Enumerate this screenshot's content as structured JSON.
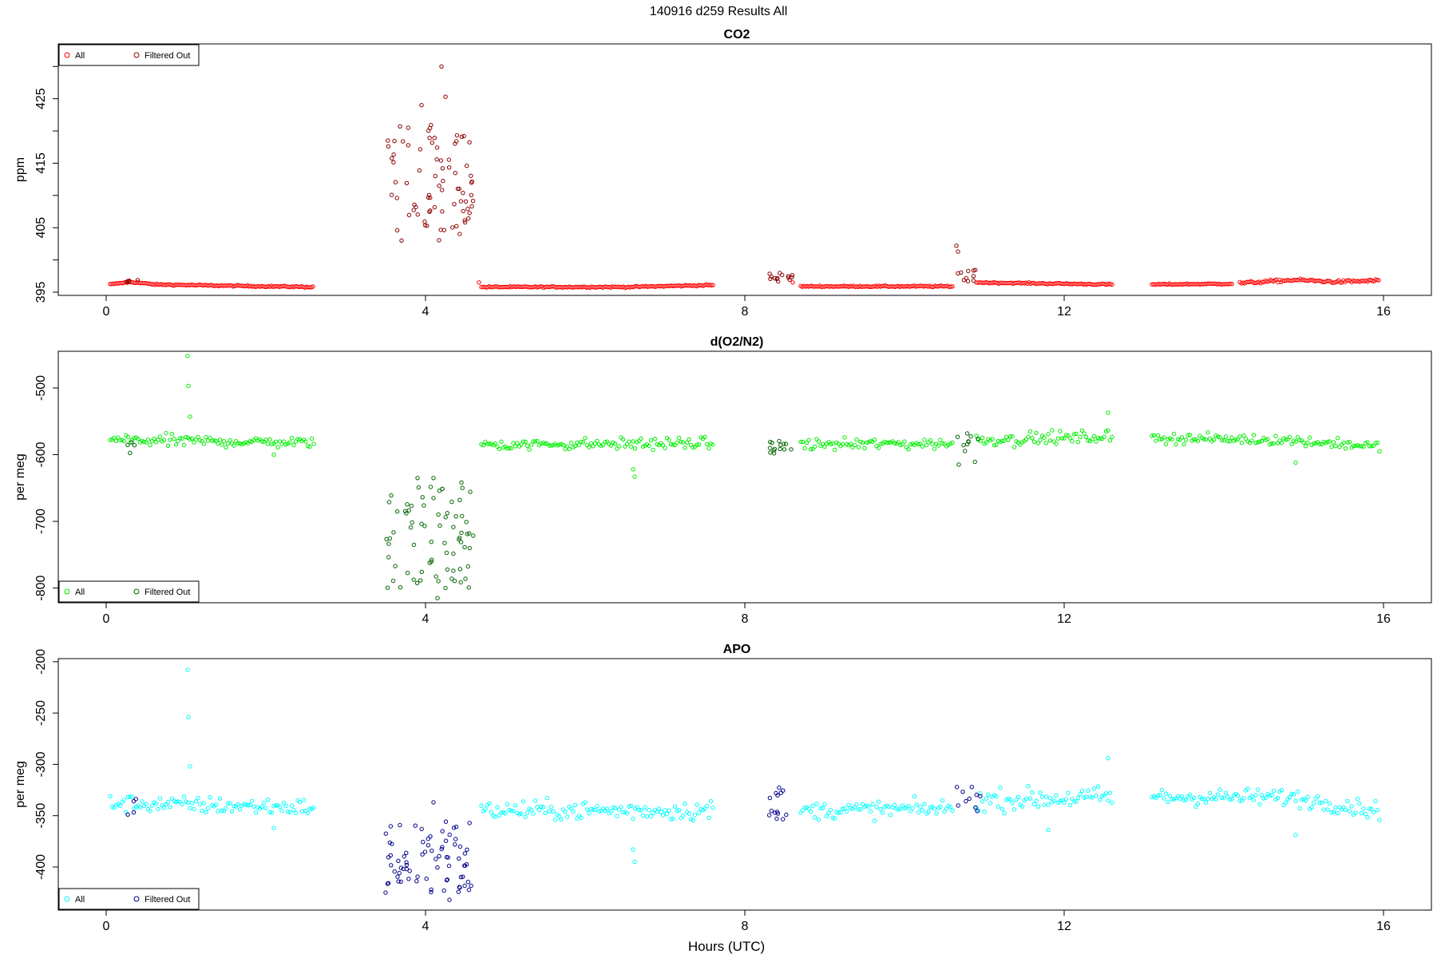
{
  "page": {
    "title": "140916   d259   Results All"
  },
  "xlabel": "Hours (UTC)",
  "colors": {
    "co2_all": "#ff0000",
    "co2_filtered": "#8b0000",
    "o2_all": "#00ee00",
    "o2_filtered": "#006400",
    "apo_all": "#00ffff",
    "apo_filtered": "#00008b"
  },
  "chart_data": [
    {
      "type": "scatter",
      "title": "CO2",
      "ylabel": "ppm",
      "xlim": [
        -0.6,
        16.6
      ],
      "ylim": [
        394.5,
        433.5
      ],
      "xticks": [
        0,
        4,
        8,
        12,
        16
      ],
      "yticks": [
        395,
        400,
        405,
        410,
        415,
        420,
        425,
        430
      ],
      "ytick_labels": [
        "395",
        "",
        "405",
        "",
        "415",
        "",
        "425",
        ""
      ],
      "grid": false,
      "legend": {
        "placement": "top-left",
        "entries": [
          "All",
          "Filtered Out"
        ]
      },
      "series": [
        {
          "name": "All",
          "segments": [
            {
              "x_start": 0.05,
              "x_end": 2.6,
              "step": 0.02,
              "y_knots": [
                [
                  0.05,
                  396.2
                ],
                [
                  0.3,
                  396.6
                ],
                [
                  0.6,
                  396.2
                ],
                [
                  1.5,
                  396.0
                ],
                [
                  2.6,
                  395.8
                ]
              ],
              "noise": 0.1
            },
            {
              "x_start": 4.7,
              "x_end": 7.6,
              "step": 0.02,
              "y_knots": [
                [
                  4.7,
                  395.8
                ],
                [
                  6.5,
                  395.8
                ],
                [
                  7.6,
                  396.1
                ]
              ],
              "noise": 0.1
            },
            {
              "x_start": 8.7,
              "x_end": 10.6,
              "step": 0.02,
              "y_knots": [
                [
                  8.7,
                  395.9
                ],
                [
                  10.6,
                  395.9
                ]
              ],
              "noise": 0.1
            },
            {
              "x_start": 10.9,
              "x_end": 12.6,
              "step": 0.02,
              "y_knots": [
                [
                  10.9,
                  396.5
                ],
                [
                  12.6,
                  396.2
                ]
              ],
              "noise": 0.1
            },
            {
              "x_start": 13.1,
              "x_end": 14.1,
              "step": 0.02,
              "y_knots": [
                [
                  13.1,
                  396.2
                ],
                [
                  14.1,
                  396.3
                ]
              ],
              "noise": 0.1
            },
            {
              "x_start": 14.2,
              "x_end": 15.95,
              "step": 0.02,
              "y_knots": [
                [
                  14.2,
                  396.4
                ],
                [
                  14.9,
                  396.9
                ],
                [
                  15.4,
                  396.6
                ],
                [
                  15.95,
                  396.8
                ]
              ],
              "noise": 0.2
            }
          ],
          "points": [
            [
              4.67,
              396.5
            ],
            [
              8.6,
              396.5
            ]
          ]
        },
        {
          "name": "Filtered Out",
          "clusters": [
            {
              "x_start": 3.5,
              "x_end": 4.6,
              "y_min": 403,
              "y_max": 421,
              "count": 80
            },
            {
              "x_start": 8.3,
              "x_end": 8.6,
              "y_min": 396.5,
              "y_max": 398.0,
              "count": 14
            },
            {
              "x_start": 10.65,
              "x_end": 10.9,
              "y_min": 396.5,
              "y_max": 398.5,
              "count": 10
            },
            {
              "x_start": 0.25,
              "x_end": 0.4,
              "y_min": 396.4,
              "y_max": 396.9,
              "count": 5
            }
          ],
          "points": [
            [
              3.7,
              403.0
            ],
            [
              3.95,
              424.0
            ],
            [
              4.2,
              430.0
            ],
            [
              4.25,
              425.3
            ],
            [
              10.65,
              402.2
            ],
            [
              10.67,
              401.3
            ]
          ]
        }
      ]
    },
    {
      "type": "scatter",
      "title": "d(O2/N2)",
      "ylabel": "per meg",
      "xlim": [
        -0.6,
        16.6
      ],
      "ylim": [
        -822,
        -445
      ],
      "xticks": [
        0,
        4,
        8,
        12,
        16
      ],
      "yticks": [
        -800,
        -700,
        -600,
        -500
      ],
      "ytick_labels": [
        "-800",
        "-700",
        "-600",
        "-500"
      ],
      "grid": false,
      "legend": {
        "placement": "bottom-left",
        "entries": [
          "All",
          "Filtered Out"
        ]
      },
      "series": [
        {
          "name": "All",
          "segments": [
            {
              "x_start": 0.05,
              "x_end": 2.6,
              "step": 0.025,
              "y_knots": [
                [
                  0.05,
                  -578
                ],
                [
                  2.6,
                  -582
                ]
              ],
              "noise": 8
            },
            {
              "x_start": 4.7,
              "x_end": 7.6,
              "step": 0.025,
              "y_knots": [
                [
                  4.7,
                  -585
                ],
                [
                  7.6,
                  -583
                ]
              ],
              "noise": 8
            },
            {
              "x_start": 8.7,
              "x_end": 10.6,
              "step": 0.025,
              "y_knots": [
                [
                  8.7,
                  -585
                ],
                [
                  10.6,
                  -583
                ]
              ],
              "noise": 8
            },
            {
              "x_start": 10.9,
              "x_end": 12.6,
              "step": 0.025,
              "y_knots": [
                [
                  10.9,
                  -578
                ],
                [
                  12.6,
                  -573
                ]
              ],
              "noise": 9
            },
            {
              "x_start": 13.1,
              "x_end": 15.95,
              "step": 0.025,
              "y_knots": [
                [
                  13.1,
                  -575
                ],
                [
                  14.8,
                  -578
                ],
                [
                  15.95,
                  -588
                ]
              ],
              "noise": 7
            }
          ],
          "points": [
            [
              1.02,
              -452
            ],
            [
              1.03,
              -497
            ],
            [
              1.05,
              -543
            ],
            [
              6.6,
              -622
            ],
            [
              6.62,
              -633
            ],
            [
              12.55,
              -537
            ],
            [
              14.9,
              -612
            ],
            [
              2.1,
              -600
            ]
          ]
        },
        {
          "name": "Filtered Out",
          "clusters": [
            {
              "x_start": 3.5,
              "x_end": 4.6,
              "y_min": -800,
              "y_max": -640,
              "count": 75
            },
            {
              "x_start": 8.3,
              "x_end": 8.6,
              "y_min": -600,
              "y_max": -578,
              "count": 14
            },
            {
              "x_start": 10.65,
              "x_end": 10.95,
              "y_min": -612,
              "y_max": -565,
              "count": 10
            },
            {
              "x_start": 0.25,
              "x_end": 0.4,
              "y_min": -600,
              "y_max": -580,
              "count": 4
            }
          ],
          "points": [
            [
              3.9,
              -635
            ],
            [
              4.1,
              -635
            ],
            [
              4.15,
              -815
            ],
            [
              4.25,
              -800
            ],
            [
              10.68,
              -615
            ]
          ]
        }
      ]
    },
    {
      "type": "scatter",
      "title": "APO",
      "ylabel": "per meg",
      "xlim": [
        -0.6,
        16.6
      ],
      "ylim": [
        -442,
        -197
      ],
      "xticks": [
        0,
        4,
        8,
        12,
        16
      ],
      "yticks": [
        -400,
        -350,
        -300,
        -250,
        -200
      ],
      "ytick_labels": [
        "-400",
        "-350",
        "-300",
        "-250",
        "-200"
      ],
      "grid": false,
      "legend": {
        "placement": "bottom-left",
        "entries": [
          "All",
          "Filtered Out"
        ]
      },
      "series": [
        {
          "name": "All",
          "segments": [
            {
              "x_start": 0.05,
              "x_end": 2.6,
              "step": 0.025,
              "y_knots": [
                [
                  0.05,
                  -338
                ],
                [
                  2.6,
                  -342
                ]
              ],
              "noise": 8
            },
            {
              "x_start": 4.7,
              "x_end": 7.6,
              "step": 0.025,
              "y_knots": [
                [
                  4.7,
                  -345
                ],
                [
                  7.6,
                  -345
                ]
              ],
              "noise": 9
            },
            {
              "x_start": 8.7,
              "x_end": 10.6,
              "step": 0.025,
              "y_knots": [
                [
                  8.7,
                  -345
                ],
                [
                  10.6,
                  -343
                ]
              ],
              "noise": 8
            },
            {
              "x_start": 10.9,
              "x_end": 12.6,
              "step": 0.025,
              "y_knots": [
                [
                  10.9,
                  -335
                ],
                [
                  12.6,
                  -332
                ]
              ],
              "noise": 10
            },
            {
              "x_start": 13.1,
              "x_end": 15.95,
              "step": 0.025,
              "y_knots": [
                [
                  13.1,
                  -332
                ],
                [
                  14.8,
                  -332
                ],
                [
                  15.95,
                  -345
                ]
              ],
              "noise": 8
            }
          ],
          "points": [
            [
              1.02,
              -208
            ],
            [
              1.03,
              -254
            ],
            [
              1.05,
              -302
            ],
            [
              6.6,
              -383
            ],
            [
              6.62,
              -395
            ],
            [
              12.55,
              -294
            ],
            [
              14.9,
              -369
            ],
            [
              11.8,
              -364
            ],
            [
              2.1,
              -362
            ]
          ]
        },
        {
          "name": "Filtered Out",
          "clusters": [
            {
              "x_start": 3.5,
              "x_end": 4.6,
              "y_min": -425,
              "y_max": -355,
              "count": 75
            },
            {
              "x_start": 8.3,
              "x_end": 8.6,
              "y_min": -356,
              "y_max": -322,
              "count": 14
            },
            {
              "x_start": 10.65,
              "x_end": 10.95,
              "y_min": -346,
              "y_max": -316,
              "count": 10
            },
            {
              "x_start": 0.25,
              "x_end": 0.4,
              "y_min": -355,
              "y_max": -333,
              "count": 4
            }
          ],
          "points": [
            [
              4.1,
              -337
            ],
            [
              4.3,
              -432
            ],
            [
              3.5,
              -425
            ]
          ]
        }
      ]
    }
  ]
}
